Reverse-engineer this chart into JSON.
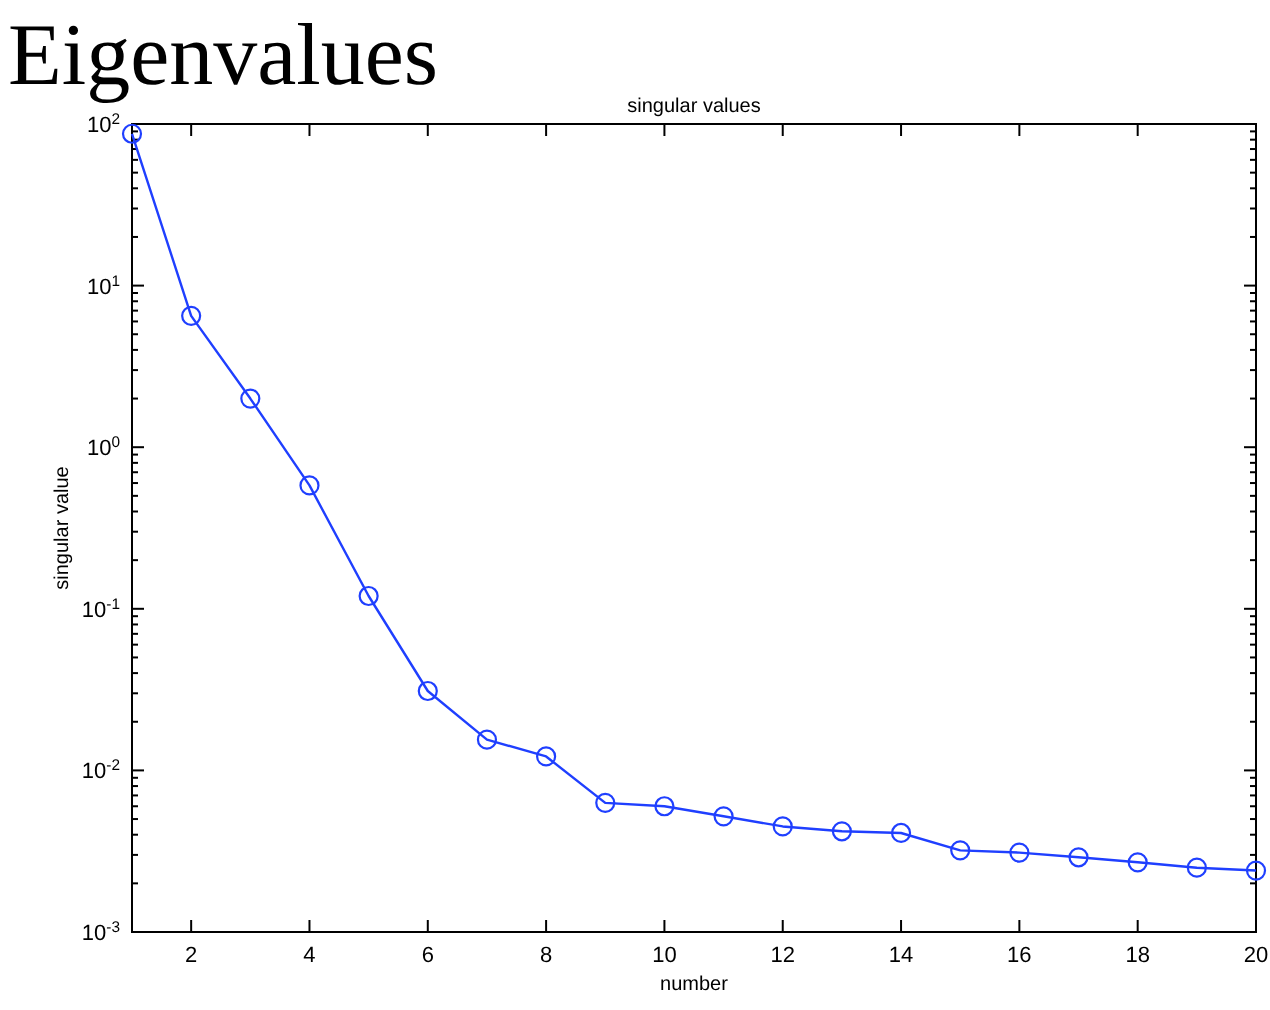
{
  "chart_data": {
    "type": "line",
    "title": "singular values",
    "xlabel": "number",
    "ylabel": "singular value",
    "annotations": [
      "Eigenvalues"
    ],
    "x": [
      1,
      2,
      3,
      4,
      5,
      6,
      7,
      8,
      9,
      10,
      11,
      12,
      13,
      14,
      15,
      16,
      17,
      18,
      19,
      20
    ],
    "series": [
      {
        "color": "#1f3fff",
        "values": [
          87,
          6.5,
          2.0,
          0.58,
          0.12,
          0.031,
          0.0155,
          0.0122,
          0.0063,
          0.006,
          0.0052,
          0.0045,
          0.0042,
          0.0041,
          0.0032,
          0.0031,
          0.0029,
          0.0027,
          0.0025,
          0.0024
        ]
      }
    ],
    "xlim": [
      1,
      20
    ],
    "xticks": [
      2,
      4,
      6,
      8,
      10,
      12,
      14,
      16,
      18,
      20
    ],
    "ylim": [
      0.001,
      100
    ],
    "yticks": [
      {
        "value": 0.001,
        "label": "10$^{-3}$"
      },
      {
        "value": 0.01,
        "label": "10$^{-2}$"
      },
      {
        "value": 0.1,
        "label": "10$^{-1}$"
      },
      {
        "value": 1,
        "label": "10$^{0}$"
      },
      {
        "value": 10,
        "label": "10$^{1}$"
      },
      {
        "value": 100,
        "label": "10$^{2}$"
      }
    ],
    "log": "y",
    "grid": false,
    "marker": "circle",
    "line_style": "solid"
  }
}
